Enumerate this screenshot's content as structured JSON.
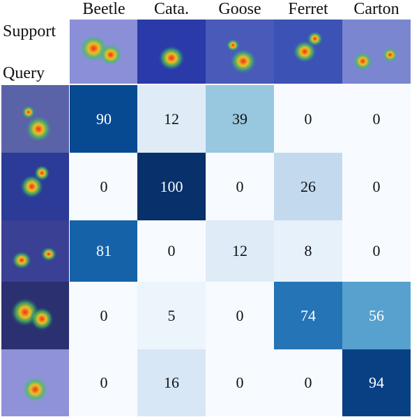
{
  "labels": {
    "support": "Support",
    "query": "Query"
  },
  "columns": [
    "Beetle",
    "Cata.",
    "Goose",
    "Ferret",
    "Carton"
  ],
  "chart_data": {
    "type": "heatmap",
    "x": [
      "Beetle",
      "Cata.",
      "Goose",
      "Ferret",
      "Carton"
    ],
    "y": [
      "Beetle",
      "Cata.",
      "Goose",
      "Ferret",
      "Carton"
    ],
    "values": [
      [
        90,
        12,
        39,
        0,
        0
      ],
      [
        0,
        100,
        0,
        26,
        0
      ],
      [
        81,
        0,
        12,
        8,
        0
      ],
      [
        0,
        5,
        0,
        74,
        56
      ],
      [
        0,
        16,
        0,
        0,
        94
      ]
    ],
    "colormap": "Blues",
    "vmin": 0,
    "vmax": 100
  },
  "support_images": [
    {
      "name": "beetle-support-image",
      "bg": "#8a8fd8"
    },
    {
      "name": "catamaran-support-image",
      "bg": "#2a3aa8"
    },
    {
      "name": "goose-support-image",
      "bg": "#4a5ab8"
    },
    {
      "name": "ferret-support-image",
      "bg": "#3c52b4"
    },
    {
      "name": "carton-support-image",
      "bg": "#7a86d0"
    }
  ],
  "query_images": [
    {
      "name": "beetle-query-image",
      "bg": "#5a62a8"
    },
    {
      "name": "catamaran-query-image",
      "bg": "#2c3a98"
    },
    {
      "name": "goose-query-image",
      "bg": "#3a4094"
    },
    {
      "name": "ferret-query-image",
      "bg": "#2a3070"
    },
    {
      "name": "carton-query-image",
      "bg": "#8f92d8"
    }
  ]
}
